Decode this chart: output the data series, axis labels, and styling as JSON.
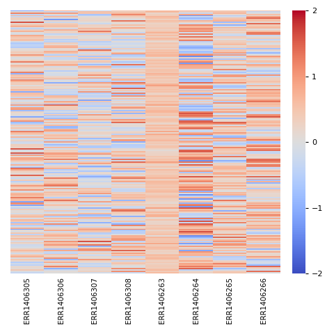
{
  "columns": [
    "ERR1406305",
    "ERR1406306",
    "ERR1406307",
    "ERR1406308",
    "ERR1406263",
    "ERR1406264",
    "ERR1406265",
    "ERR1406266"
  ],
  "n_rows": 200,
  "vmin": -2.5,
  "vmax": 2.5,
  "colormap": "coolwarm",
  "colorbar_ticks": [
    -2,
    -1,
    0,
    1,
    2
  ],
  "colorbar_vmin": -2,
  "colorbar_vmax": 2,
  "figsize": [
    4.8,
    4.8
  ],
  "dpi": 100,
  "seed": 12,
  "background": "#f5f5f5"
}
